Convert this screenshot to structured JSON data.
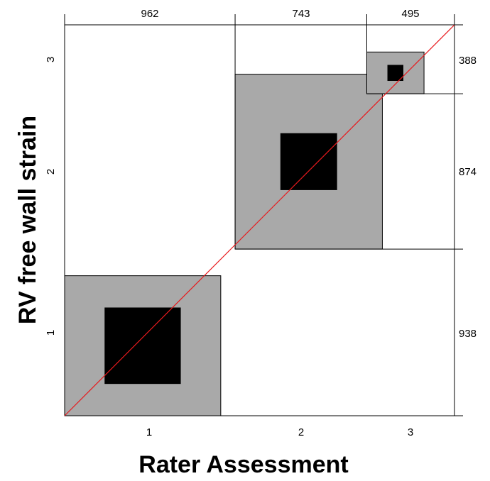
{
  "chart_data": {
    "type": "heatmap",
    "subtype": "bangdiwala-agreement-chart",
    "xlabel": "Rater Assessment",
    "ylabel": "RV free wall strain",
    "categories": [
      "1",
      "2",
      "3"
    ],
    "column_totals": [
      962,
      743,
      495
    ],
    "row_totals": [
      938,
      874,
      388
    ],
    "total": 2200,
    "diagonal_agreement": [
      430,
      320,
      90
    ],
    "partial_agreement_rect_sizes": [
      {
        "category": "1",
        "width": 881,
        "height": 788
      },
      {
        "category": "2",
        "width": 831,
        "height": 984
      },
      {
        "category": "3",
        "width": 323,
        "height": 235
      }
    ],
    "colors": {
      "agreement": "#000000",
      "partial_agreement": "#a9a9a9",
      "reference_line": "#e8191c",
      "grid": "#000000"
    }
  }
}
